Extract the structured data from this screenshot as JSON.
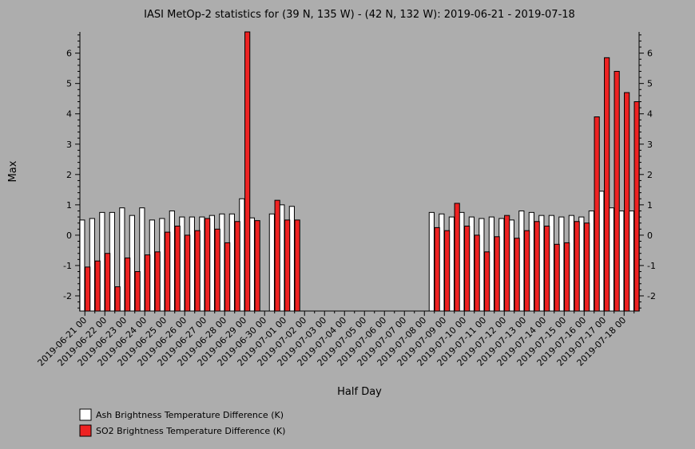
{
  "chart_data": {
    "type": "bar",
    "title": "IASI MetOp-2 statistics for (39 N, 135 W) - (42 N, 132 W): 2019-06-21 - 2019-07-18",
    "xlabel": "Half Day",
    "ylabel": "Max",
    "ylim": [
      -2.5,
      6.7
    ],
    "yticks": [
      -2,
      -1,
      0,
      1,
      2,
      3,
      4,
      5,
      6
    ],
    "categories": [
      "2019-06-21 00",
      "2019-06-21 12",
      "2019-06-22 00",
      "2019-06-22 12",
      "2019-06-23 00",
      "2019-06-23 12",
      "2019-06-24 00",
      "2019-06-24 12",
      "2019-06-25 00",
      "2019-06-25 12",
      "2019-06-26 00",
      "2019-06-26 12",
      "2019-06-27 00",
      "2019-06-27 12",
      "2019-06-28 00",
      "2019-06-28 12",
      "2019-06-29 00",
      "2019-06-29 12",
      "2019-06-30 00",
      "2019-06-30 12",
      "2019-07-01 00",
      "2019-07-01 12",
      "2019-07-02 00",
      "2019-07-02 12",
      "2019-07-03 00",
      "2019-07-03 12",
      "2019-07-04 00",
      "2019-07-04 12",
      "2019-07-05 00",
      "2019-07-05 12",
      "2019-07-06 00",
      "2019-07-06 12",
      "2019-07-07 00",
      "2019-07-07 12",
      "2019-07-08 00",
      "2019-07-08 12",
      "2019-07-09 00",
      "2019-07-09 12",
      "2019-07-10 00",
      "2019-07-10 12",
      "2019-07-11 00",
      "2019-07-11 12",
      "2019-07-12 00",
      "2019-07-12 12",
      "2019-07-13 00",
      "2019-07-13 12",
      "2019-07-14 00",
      "2019-07-14 12",
      "2019-07-15 00",
      "2019-07-15 12",
      "2019-07-16 00",
      "2019-07-16 12",
      "2019-07-17 00",
      "2019-07-17 12",
      "2019-07-18 00",
      "2019-07-18 12"
    ],
    "tick_labels": [
      "2019-06-21 00",
      "2019-06-22 00",
      "2019-06-23 00",
      "2019-06-24 00",
      "2019-06-25 00",
      "2019-06-26 00",
      "2019-06-27 00",
      "2019-06-28 00",
      "2019-06-29 00",
      "2019-06-30 00",
      "2019-07-01 00",
      "2019-07-02 00",
      "2019-07-03 00",
      "2019-07-04 00",
      "2019-07-05 00",
      "2019-07-06 00",
      "2019-07-07 00",
      "2019-07-08 00",
      "2019-07-09 00",
      "2019-07-10 00",
      "2019-07-11 00",
      "2019-07-12 00",
      "2019-07-13 00",
      "2019-07-14 00",
      "2019-07-15 00",
      "2019-07-16 00",
      "2019-07-17 00",
      "2019-07-18 00"
    ],
    "series": [
      {
        "name": "Ash Brightness Temperature Difference (K)",
        "color": "#ffffff",
        "values": [
          0.5,
          0.55,
          0.75,
          0.75,
          0.9,
          0.65,
          0.9,
          0.5,
          0.55,
          0.8,
          0.6,
          0.6,
          0.6,
          0.65,
          0.7,
          0.7,
          1.2,
          0.57,
          null,
          0.7,
          1.0,
          0.95,
          null,
          null,
          null,
          null,
          null,
          null,
          null,
          null,
          null,
          null,
          null,
          null,
          null,
          0.75,
          0.7,
          0.6,
          0.75,
          0.6,
          0.55,
          0.6,
          0.55,
          0.5,
          0.8,
          0.75,
          0.65,
          0.65,
          0.6,
          0.65,
          0.6,
          0.8,
          1.45,
          0.9,
          0.8,
          0.8
        ]
      },
      {
        "name": "SO2 Brightness Temperature Difference (K)",
        "color": "#ee2222",
        "values": [
          -1.05,
          -0.85,
          -0.6,
          -1.7,
          -0.75,
          -1.2,
          -0.65,
          -0.55,
          0.1,
          0.3,
          0.0,
          0.15,
          0.55,
          0.2,
          -0.25,
          0.45,
          6.7,
          0.48,
          null,
          1.15,
          0.5,
          0.5,
          null,
          null,
          null,
          null,
          null,
          null,
          null,
          null,
          null,
          null,
          null,
          null,
          null,
          0.25,
          0.15,
          1.05,
          0.3,
          0.0,
          -0.55,
          -0.05,
          0.65,
          -0.1,
          0.15,
          0.45,
          0.3,
          -0.3,
          -0.25,
          0.45,
          0.4,
          3.9,
          5.85,
          5.4,
          4.7,
          4.4
        ]
      }
    ],
    "legend_position": "bottom-left"
  }
}
